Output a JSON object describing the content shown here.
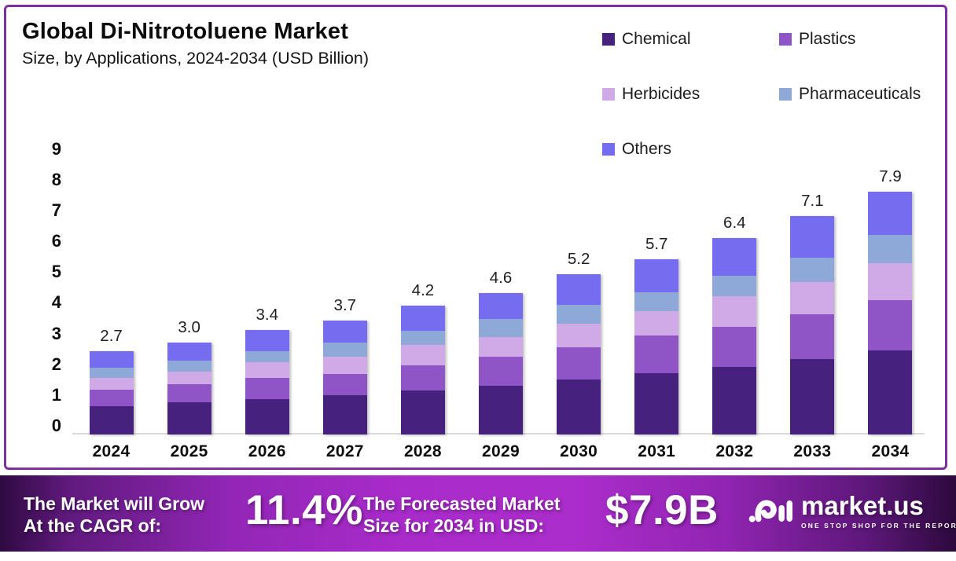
{
  "header": {
    "title": "Global Di-Nitrotoluene Market",
    "subtitle": "Size, by Applications, 2024-2034 (USD Billion)"
  },
  "chart_data": {
    "type": "bar",
    "stacked": true,
    "title": "Global Di-Nitrotoluene Market Size, by Applications, 2024-2034 (USD Billion)",
    "categories": [
      "2024",
      "2025",
      "2026",
      "2027",
      "2028",
      "2029",
      "2030",
      "2031",
      "2032",
      "2033",
      "2034"
    ],
    "totals": [
      "2.7",
      "3.0",
      "3.4",
      "3.7",
      "4.2",
      "4.6",
      "5.2",
      "5.7",
      "6.4",
      "7.1",
      "7.9"
    ],
    "series": [
      {
        "name": "Chemical",
        "color": "#46217e",
        "values": [
          0.93,
          1.04,
          1.15,
          1.27,
          1.44,
          1.58,
          1.8,
          2.0,
          2.2,
          2.45,
          2.74
        ]
      },
      {
        "name": "Plastics",
        "color": "#8f55c6",
        "values": [
          0.52,
          0.6,
          0.68,
          0.71,
          0.82,
          0.94,
          1.03,
          1.22,
          1.3,
          1.45,
          1.62
        ]
      },
      {
        "name": "Herbicides",
        "color": "#cfaae6",
        "values": [
          0.4,
          0.41,
          0.52,
          0.56,
          0.64,
          0.66,
          0.76,
          0.79,
          1.01,
          1.06,
          1.2
        ]
      },
      {
        "name": "Pharmaceuticals",
        "color": "#8ea8d8",
        "values": [
          0.33,
          0.36,
          0.35,
          0.45,
          0.46,
          0.58,
          0.63,
          0.62,
          0.65,
          0.8,
          0.94
        ]
      },
      {
        "name": "Others",
        "color": "#756cf0",
        "values": [
          0.52,
          0.59,
          0.7,
          0.71,
          0.84,
          0.84,
          0.98,
          1.07,
          1.24,
          1.34,
          1.4
        ]
      }
    ],
    "ylim": [
      0,
      9
    ],
    "yticks": [
      9,
      8,
      7,
      6,
      5,
      4,
      3,
      2,
      1,
      0
    ],
    "grid": false,
    "legend_position": "top-right"
  },
  "banner": {
    "cagr_label_line1": "The Market will Grow",
    "cagr_label_line2": "At the CAGR of:",
    "cagr_value": "11.4%",
    "forecast_label_line1": "The Forecasted Market",
    "forecast_label_line2": "Size for 2034 in USD:",
    "forecast_value": "$7.9B",
    "logo_text": "market.us",
    "logo_tagline": "ONE STOP SHOP FOR THE REPORTS"
  },
  "colors": {
    "frame_border": "#7d2fa0",
    "baseline": "#d9d9d9",
    "banner_center": "#a92bca",
    "banner_edge": "#2e0940"
  }
}
